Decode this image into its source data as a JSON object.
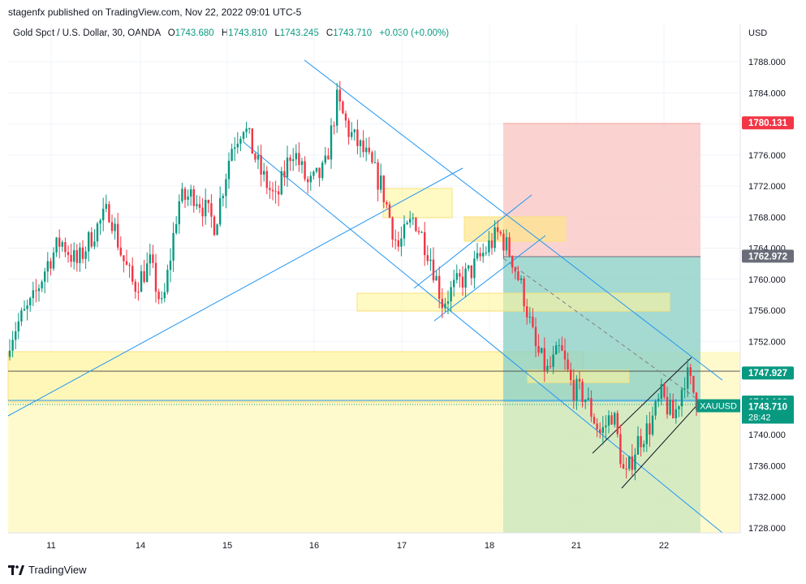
{
  "header": {
    "publisher": "stagenfx published on TradingView.com, Nov 22, 2022 09:01 UTC-5"
  },
  "legend": {
    "symbol": "Gold Spot / U.S. Dollar, 30, OANDA",
    "open_label": "O",
    "open": "1743.680",
    "high_label": "H",
    "high": "1743.810",
    "low_label": "L",
    "low": "1743.245",
    "close_label": "C",
    "close": "1743.710",
    "change": "+0.030 (+0.00%)",
    "value_color": "#089981"
  },
  "currency": "USD",
  "footer": {
    "brand": "TradingView"
  },
  "chart_data": {
    "type": "candlestick",
    "symbol": "XAUUSD",
    "timeframe": "30",
    "y_axis": {
      "ticks": [
        "1788.000",
        "1784.000",
        "1780.000",
        "1776.000",
        "1772.000",
        "1768.000",
        "1764.000",
        "1760.000",
        "1756.000",
        "1752.000",
        "1748.000",
        "1744.000",
        "1740.000",
        "1736.000",
        "1732.000",
        "1728.000"
      ],
      "range": [
        1727,
        1794
      ]
    },
    "x_axis": {
      "ticks": [
        "11",
        "14",
        "15",
        "16",
        "17",
        "18",
        "21",
        "22"
      ]
    },
    "price_labels": [
      {
        "value": 1780.131,
        "text": "1780.131",
        "color": "#f23645"
      },
      {
        "value": 1762.972,
        "text": "1762.972",
        "color": "#6a6d78"
      },
      {
        "value": 1747.927,
        "text": "1747.927",
        "color": "#089981"
      },
      {
        "value": 1744.186,
        "text": "1744.186",
        "color": "#089981"
      },
      {
        "value": 1743.71,
        "text": "1743.710",
        "symbol": "XAUUSD",
        "countdown": "28:42",
        "color": "#089981"
      }
    ],
    "colors": {
      "up": "#089981",
      "down": "#f23645",
      "line": "#2196f3",
      "zone": "#fff59d"
    }
  }
}
